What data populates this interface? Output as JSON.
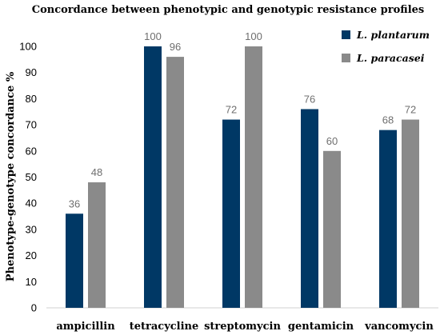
{
  "chart_data": {
    "type": "bar",
    "title": "Concordance between phenotypic and genotypic resistance profiles",
    "xlabel": "",
    "ylabel": "Phenotype-genotype concordance %",
    "ylim": [
      0,
      100
    ],
    "yticks": [
      0,
      10,
      20,
      30,
      40,
      50,
      60,
      70,
      80,
      90,
      100
    ],
    "grid": false,
    "legend_position": "top-right",
    "categories": [
      "ampicillin",
      "tetracycline",
      "streptomycin",
      "gentamicin",
      "vancomycin"
    ],
    "series": [
      {
        "name": "L. plantarum",
        "color": "#003865",
        "values": [
          36,
          100,
          72,
          76,
          68
        ]
      },
      {
        "name": "L. paracasei",
        "color": "#8a8a8a",
        "values": [
          48,
          96,
          100,
          60,
          72
        ]
      }
    ]
  }
}
